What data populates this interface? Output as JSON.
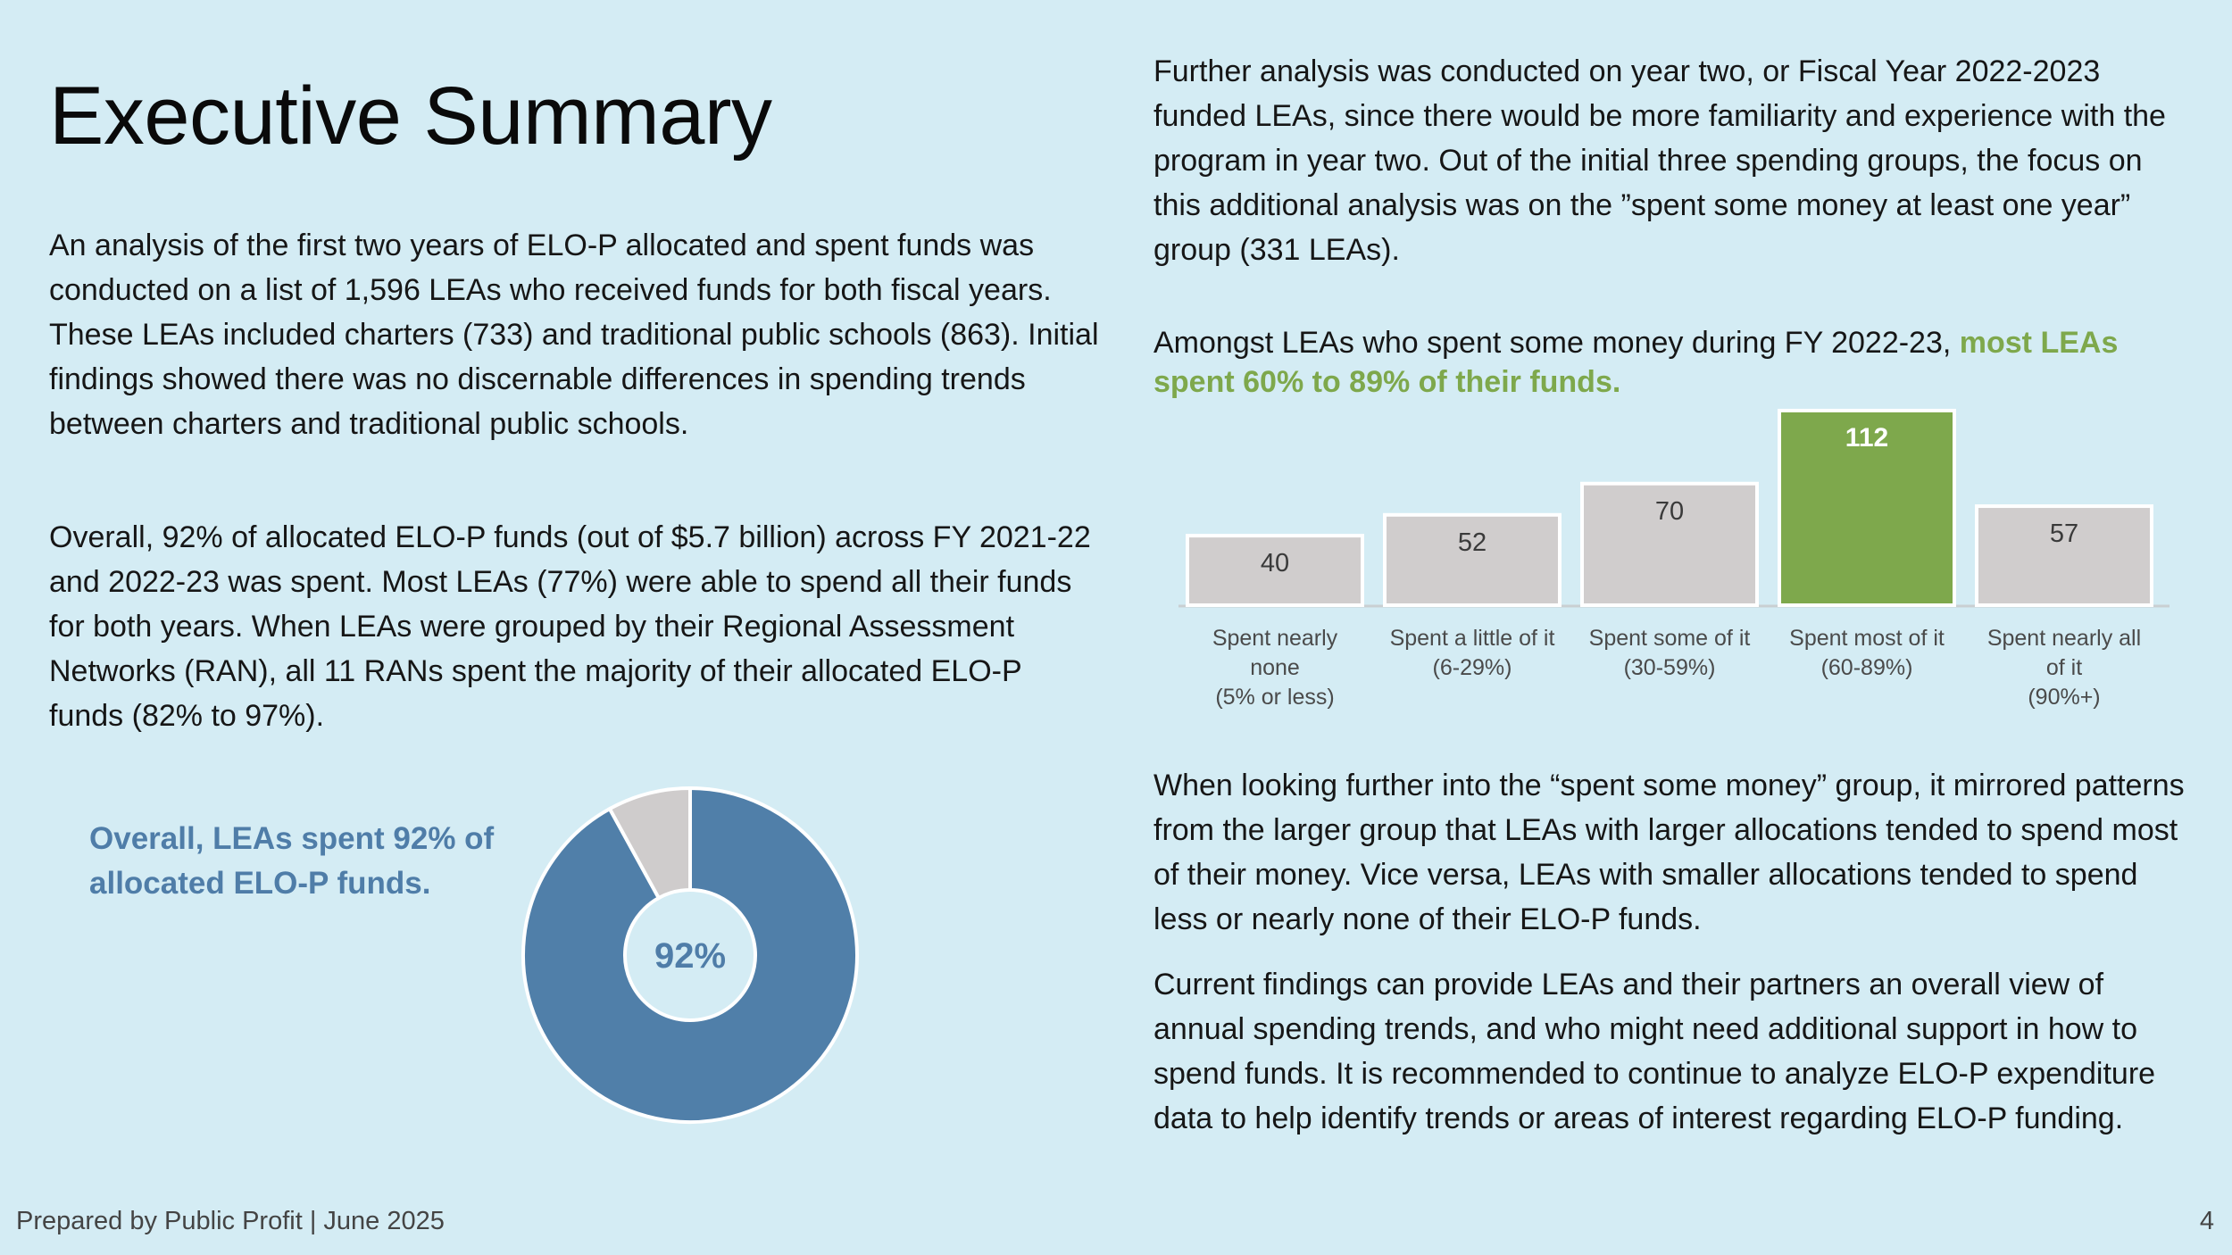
{
  "header": {
    "title": "Executive Summary"
  },
  "left_column": {
    "paragraphs": [
      "An analysis of the first two years of ELO-P allocated and spent funds was conducted on a list of 1,596 LEAs who received funds for both fiscal years. These LEAs included charters (733) and traditional public schools (863). Initial findings showed there was no discernable differences in spending trends between charters and traditional public schools.",
      "Overall, 92% of allocated ELO-P funds (out of $5.7 billion) across FY 2021-22 and 2022-23 was spent. Most LEAs (77%) were able to spend all their funds for both years. When LEAs were grouped by their Regional Assessment Networks (RAN), all 11 RANs spent the majority of their allocated ELO-P funds (82% to 97%)."
    ],
    "donut_caption": "Overall, LEAs spent 92% of allocated ELO-P funds."
  },
  "right_column": {
    "paragraphs": [
      "Further analysis was conducted on year two, or Fiscal Year 2022-2023 funded LEAs, since there would be more familiarity and experience with the program in year two. Out of the initial three spending groups, the focus on this additional analysis was on the ”spent some money at least one year” group (331 LEAs).",
      "When looking further into the “spent some money” group, it mirrored patterns from the larger group that LEAs with larger allocations tended to spend most of their money. Vice versa, LEAs with smaller allocations tended to spend less or nearly none of their ELO-P funds.",
      "Current findings can provide LEAs and their partners an overall view of annual spending trends, and who might need additional support in how to spend funds. It is recommended to continue to analyze ELO-P expenditure data to help identify trends or areas of interest regarding ELO-P funding."
    ],
    "chart_caption": {
      "plain": "Amongst LEAs who spent some money during FY 2022-23, ",
      "highlight": "most LEAs spent 60% to 89% of their funds."
    }
  },
  "colors": {
    "background": "#d4ecf4",
    "donut_spent": "#507fa9",
    "donut_unspent": "#cfcccc",
    "bar_default": "#d0cdcd",
    "bar_highlight": "#7ea84c",
    "accent_blue_text": "#4f7da8",
    "accent_green_text": "#7ea84c"
  },
  "chart_data": [
    {
      "type": "pie",
      "variant": "donut",
      "title": "Overall, LEAs spent 92% of allocated ELO-P funds.",
      "slices": [
        {
          "label": "Spent",
          "value": 92
        },
        {
          "label": "Not spent",
          "value": 8
        }
      ],
      "center_label": "92%",
      "legend": "none"
    },
    {
      "type": "bar",
      "title": "Amongst LEAs who spent some money during FY 2022-23, most LEAs spent 60% to 89% of their funds.",
      "categories": [
        [
          "Spent nearly",
          "none",
          "(5% or less)"
        ],
        [
          "Spent a little of it",
          "(6-29%)"
        ],
        [
          "Spent some of it",
          "(30-59%)"
        ],
        [
          "Spent most of it",
          "(60-89%)"
        ],
        [
          "Spent nearly all",
          "of it",
          "(90%+)"
        ]
      ],
      "values": [
        40,
        52,
        70,
        112,
        57
      ],
      "highlight_index": 3,
      "data_labels": [
        "40",
        "52",
        "70",
        "112",
        "57"
      ],
      "xlabel": "",
      "ylabel": "",
      "ylim": [
        0,
        112
      ],
      "grid": false,
      "legend": "none"
    }
  ],
  "footer": {
    "left": "Prepared by Public Profit | June 2025",
    "page_number": "4"
  }
}
